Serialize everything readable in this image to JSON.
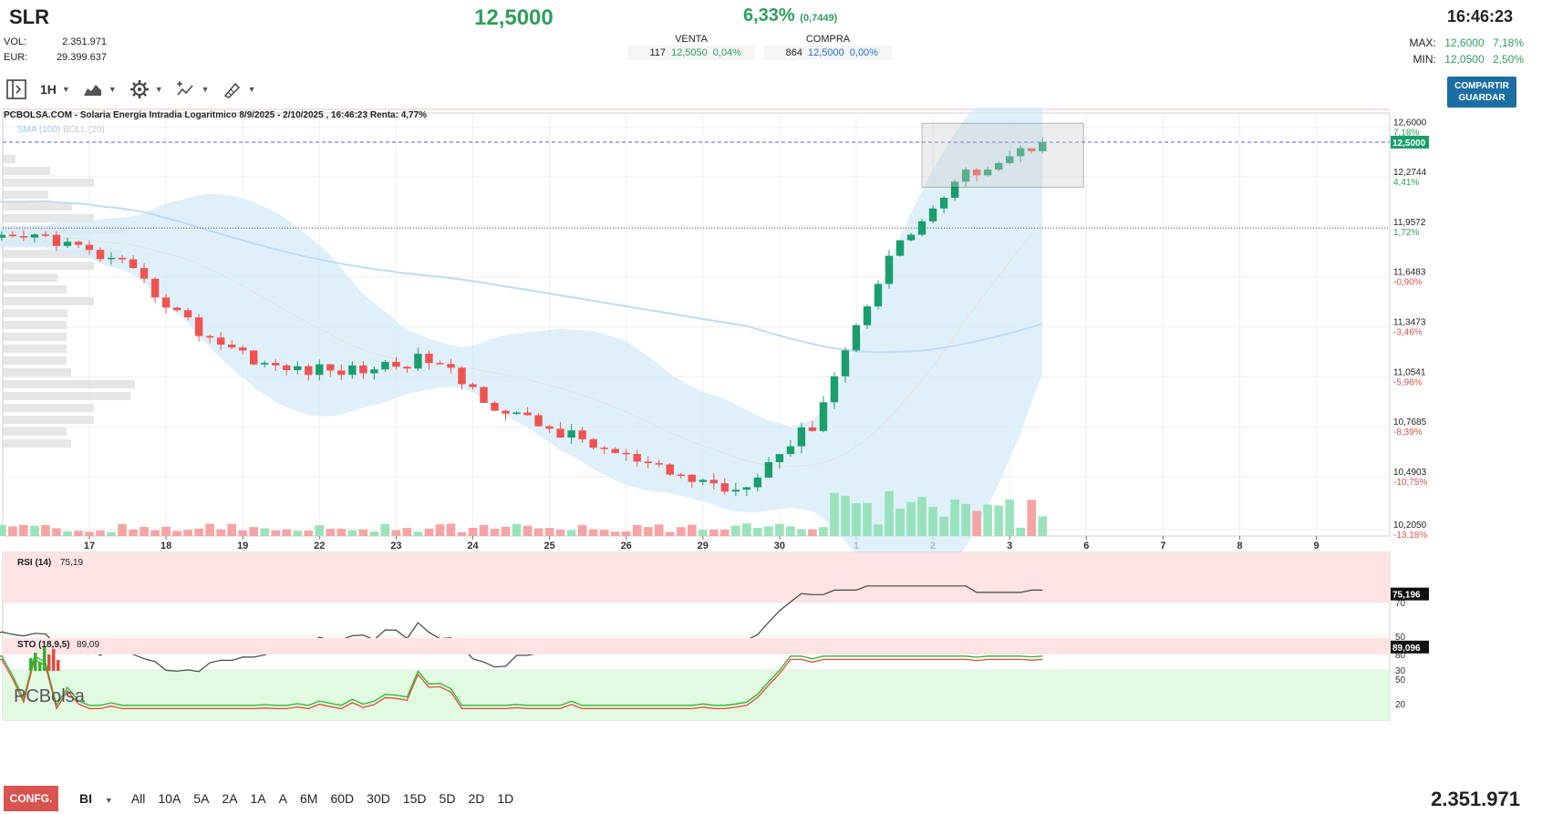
{
  "header": {
    "ticker": "SLR",
    "price": "12,5000",
    "change_pct": "6,33%",
    "change_abs": "(0,7449)",
    "time": "16:46:23",
    "vol_label": "VOL:",
    "vol_value": "2.351.971",
    "eur_label": "EUR:",
    "eur_value": "29.399.637",
    "venta_label": "VENTA",
    "venta_qty": "117",
    "venta_price": "12,5050",
    "venta_pct": "0,04%",
    "compra_label": "COMPRA",
    "compra_qty": "864",
    "compra_price": "12,5000",
    "compra_pct": "0,00%",
    "max_label": "MAX:",
    "max_price": "12,6000",
    "max_pct": "7,18%",
    "min_label": "MIN:",
    "min_price": "12,0500",
    "min_pct": "2,50%"
  },
  "toolbar": {
    "interval": "1H",
    "share_line1": "COMPARTIR",
    "share_line2": "GUARDAR"
  },
  "chart_title": "PCBOLSA.COM - Solaria Energia Intradia Logaritmico 8/9/2025 - 2/10/2025 , 16:46:23 Renta: 4,77%",
  "indicator_legend": {
    "sma": "SMA (100)",
    "boll": "BOLL (20)"
  },
  "colors": {
    "up": "#1a9e6b",
    "down": "#ef5350",
    "boll_fill": "#d6ebfa",
    "sma_line": "#bcdcf4",
    "last_price_box": "#1a9e6b",
    "accent_blue": "#1b6ea3"
  },
  "chart_data": [
    {
      "type": "candlestick",
      "title": "PCBOLSA.COM - Solaria Energia Intradia Logaritmico 8/9/2025 - 2/10/2025 , 16:46:23 Renta: 4,77%",
      "scale": "log",
      "x_tick_labels": [
        "17",
        "18",
        "19",
        "22",
        "23",
        "24",
        "25",
        "26",
        "29",
        "30",
        "1",
        "2",
        "3",
        "6",
        "7",
        "8",
        "9"
      ],
      "y_tick_labels": [
        {
          "price": "12,6000",
          "pct": "7,18%"
        },
        {
          "price": "12,2744",
          "pct": "4,41%"
        },
        {
          "price": "11,9572",
          "pct": "1,72%"
        },
        {
          "price": "11,6483",
          "pct": "-0,90%"
        },
        {
          "price": "11,3473",
          "pct": "-3,46%"
        },
        {
          "price": "11,0541",
          "pct": "-5,96%"
        },
        {
          "price": "10,7685",
          "pct": "-8,39%"
        },
        {
          "price": "10,4903",
          "pct": "-10,75%"
        },
        {
          "price": "10,2050",
          "pct": "-13,18%"
        }
      ],
      "ylim": [
        10.17,
        12.68
      ],
      "last_price_label": "12,5000",
      "reference_price": 11.95,
      "daily_closes": [
        {
          "day": "17",
          "close": 11.72
        },
        {
          "day": "18",
          "close": 11.32
        },
        {
          "day": "19",
          "close": 11.1
        },
        {
          "day": "22",
          "close": 11.09
        },
        {
          "day": "23",
          "close": 11.16
        },
        {
          "day": "24",
          "close": 10.85
        },
        {
          "day": "25",
          "close": 10.69
        },
        {
          "day": "26",
          "close": 10.52
        },
        {
          "day": "29",
          "close": 10.42
        },
        {
          "day": "30",
          "close": 10.78
        },
        {
          "day": "1",
          "close": 11.78
        },
        {
          "day": "2",
          "close": 12.29
        },
        {
          "day": "3",
          "close": 12.5
        }
      ],
      "series": [
        {
          "name": "SMA (100)"
        },
        {
          "name": "BOLL (20)"
        }
      ]
    },
    {
      "type": "line",
      "title": "RSI (14)",
      "last_value": "75,19",
      "axis_label": "75,196",
      "y_tick_labels": [
        "70",
        "50",
        "30"
      ],
      "ylim": [
        0,
        100
      ]
    },
    {
      "type": "line",
      "title": "STO (18,9,5)",
      "last_value": "89,09",
      "axis_label": "89,096",
      "y_tick_labels": [
        "80",
        "50",
        "20"
      ],
      "ylim": [
        0,
        100
      ]
    }
  ],
  "bottom": {
    "config_label": "CONFG.",
    "mode_label": "BI",
    "ranges": [
      "All",
      "10A",
      "5A",
      "2A",
      "1A",
      "A",
      "6M",
      "60D",
      "30D",
      "15D",
      "5D",
      "2D",
      "1D"
    ],
    "volume": "2.351.971"
  },
  "logo_text": "PCBolsa"
}
